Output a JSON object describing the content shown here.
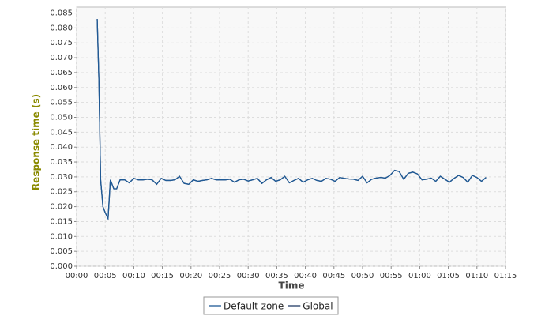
{
  "chart_data": {
    "type": "line",
    "xlabel": "Time",
    "ylabel": "Response time (s)",
    "x": [
      3.6,
      3.9,
      4.2,
      4.6,
      5.0,
      5.5,
      5.9,
      6.5,
      7.0,
      7.6,
      8.4,
      9.2,
      10.0,
      10.8,
      11.6,
      12.4,
      13.2,
      14.0,
      14.8,
      15.6,
      16.4,
      17.2,
      18.0,
      18.8,
      19.6,
      20.4,
      21.2,
      22.0,
      22.8,
      23.6,
      24.4,
      25.2,
      26.0,
      26.8,
      27.6,
      28.4,
      29.2,
      30.0,
      30.8,
      31.6,
      32.4,
      33.2,
      34.0,
      34.8,
      35.6,
      36.4,
      37.2,
      38.0,
      38.8,
      39.6,
      40.4,
      41.2,
      42.0,
      42.8,
      43.6,
      44.4,
      45.2,
      46.0,
      46.8,
      47.6,
      48.4,
      49.2,
      50.0,
      50.8,
      51.6,
      52.4,
      53.2,
      54.0,
      54.8,
      55.6,
      56.4,
      57.2,
      58.0,
      58.8,
      59.6,
      60.4,
      61.2,
      62.0,
      62.8,
      63.6,
      64.4,
      65.2,
      66.0,
      66.8,
      67.6,
      68.4,
      69.2,
      70.0,
      70.8,
      71.6
    ],
    "series": [
      {
        "name": "Default zone",
        "color": "#1f5a96",
        "values": [
          0.083,
          0.062,
          0.029,
          0.02,
          0.018,
          0.016,
          0.029,
          0.026,
          0.026,
          0.029,
          0.029,
          0.028,
          0.0295,
          0.029,
          0.029,
          0.0292,
          0.029,
          0.0275,
          0.0295,
          0.0288,
          0.0288,
          0.029,
          0.0302,
          0.0278,
          0.0275,
          0.029,
          0.0285,
          0.0288,
          0.029,
          0.0295,
          0.029,
          0.029,
          0.029,
          0.0292,
          0.0282,
          0.029,
          0.0292,
          0.0286,
          0.029,
          0.0295,
          0.0278,
          0.029,
          0.0298,
          0.0285,
          0.029,
          0.0302,
          0.028,
          0.0288,
          0.0295,
          0.0282,
          0.029,
          0.0295,
          0.0288,
          0.0285,
          0.0295,
          0.0292,
          0.0285,
          0.0298,
          0.0295,
          0.0293,
          0.0292,
          0.0288,
          0.0302,
          0.028,
          0.0292,
          0.0296,
          0.0298,
          0.0296,
          0.0305,
          0.0322,
          0.0318,
          0.0292,
          0.0312,
          0.0316,
          0.031,
          0.029,
          0.0292,
          0.0296,
          0.0285,
          0.0302,
          0.0292,
          0.0282,
          0.0295,
          0.0305,
          0.0298,
          0.0282,
          0.0305,
          0.0298,
          0.0285,
          0.0298
        ]
      },
      {
        "name": "Global",
        "color": "#1a3560",
        "values": [
          0.083,
          0.062,
          0.029,
          0.02,
          0.018,
          0.016,
          0.029,
          0.026,
          0.026,
          0.029,
          0.029,
          0.028,
          0.0295,
          0.029,
          0.029,
          0.0292,
          0.029,
          0.0275,
          0.0295,
          0.0288,
          0.0288,
          0.029,
          0.0302,
          0.0278,
          0.0275,
          0.029,
          0.0285,
          0.0288,
          0.029,
          0.0295,
          0.029,
          0.029,
          0.029,
          0.0292,
          0.0282,
          0.029,
          0.0292,
          0.0286,
          0.029,
          0.0295,
          0.0278,
          0.029,
          0.0298,
          0.0285,
          0.029,
          0.0302,
          0.028,
          0.0288,
          0.0295,
          0.0282,
          0.029,
          0.0295,
          0.0288,
          0.0285,
          0.0295,
          0.0292,
          0.0285,
          0.0298,
          0.0295,
          0.0293,
          0.0292,
          0.0288,
          0.0302,
          0.028,
          0.0292,
          0.0296,
          0.0298,
          0.0296,
          0.0305,
          0.0322,
          0.0318,
          0.0292,
          0.0312,
          0.0316,
          0.031,
          0.029,
          0.0292,
          0.0296,
          0.0285,
          0.0302,
          0.0292,
          0.0282,
          0.0295,
          0.0305,
          0.0298,
          0.0282,
          0.0305,
          0.0298,
          0.0285,
          0.0298
        ]
      }
    ],
    "xlim": [
      0,
      75
    ],
    "xticks": [
      {
        "value": 0,
        "label": "00:00"
      },
      {
        "value": 5,
        "label": "00:05"
      },
      {
        "value": 10,
        "label": "00:10"
      },
      {
        "value": 15,
        "label": "00:15"
      },
      {
        "value": 20,
        "label": "00:20"
      },
      {
        "value": 25,
        "label": "00:25"
      },
      {
        "value": 30,
        "label": "00:30"
      },
      {
        "value": 35,
        "label": "00:35"
      },
      {
        "value": 40,
        "label": "00:40"
      },
      {
        "value": 45,
        "label": "00:45"
      },
      {
        "value": 50,
        "label": "00:50"
      },
      {
        "value": 55,
        "label": "00:55"
      },
      {
        "value": 60,
        "label": "01:00"
      },
      {
        "value": 65,
        "label": "01:05"
      },
      {
        "value": 70,
        "label": "01:10"
      },
      {
        "value": 75,
        "label": "01:15"
      }
    ],
    "ylim": [
      0,
      0.087
    ],
    "yticks": [
      {
        "value": 0,
        "label": "0.000"
      },
      {
        "value": 0.005,
        "label": "0.005"
      },
      {
        "value": 0.01,
        "label": "0.010"
      },
      {
        "value": 0.015,
        "label": "0.015"
      },
      {
        "value": 0.02,
        "label": "0.020"
      },
      {
        "value": 0.025,
        "label": "0.025"
      },
      {
        "value": 0.03,
        "label": "0.030"
      },
      {
        "value": 0.035,
        "label": "0.035"
      },
      {
        "value": 0.04,
        "label": "0.040"
      },
      {
        "value": 0.045,
        "label": "0.045"
      },
      {
        "value": 0.05,
        "label": "0.050"
      },
      {
        "value": 0.055,
        "label": "0.055"
      },
      {
        "value": 0.06,
        "label": "0.060"
      },
      {
        "value": 0.065,
        "label": "0.065"
      },
      {
        "value": 0.07,
        "label": "0.070"
      },
      {
        "value": 0.075,
        "label": "0.075"
      },
      {
        "value": 0.08,
        "label": "0.080"
      },
      {
        "value": 0.085,
        "label": "0.085"
      }
    ],
    "grid": true,
    "legend": "bottom"
  }
}
